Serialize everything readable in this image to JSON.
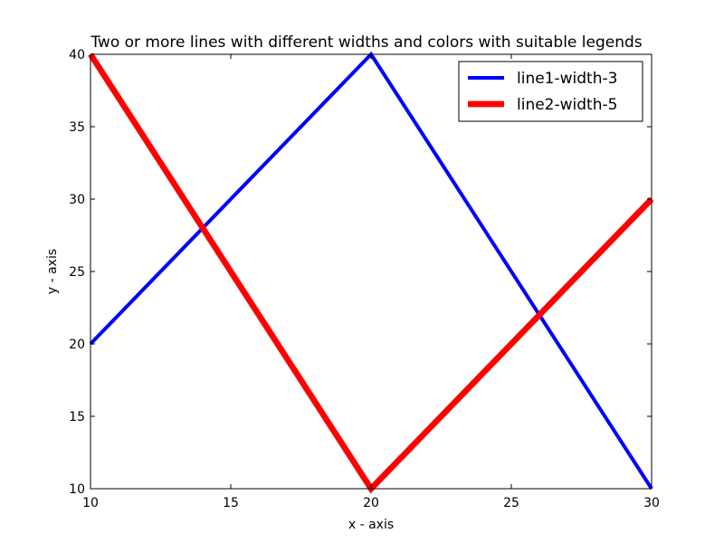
{
  "chart_data": {
    "type": "line",
    "title": "Two or more lines with different widths and colors with suitable legends",
    "xlabel": "x - axis",
    "ylabel": "y - axis",
    "xlim": [
      10,
      30
    ],
    "ylim": [
      10,
      40
    ],
    "xticks": [
      10,
      15,
      20,
      25,
      30
    ],
    "yticks": [
      10,
      15,
      20,
      25,
      30,
      35,
      40
    ],
    "grid": false,
    "legend_position": "top-right",
    "series": [
      {
        "name": "line1-width-3",
        "color": "#0000ff",
        "linewidth": 3,
        "x": [
          10,
          20,
          30
        ],
        "y": [
          20,
          40,
          10
        ]
      },
      {
        "name": "line2-width-5",
        "color": "#ff0000",
        "linewidth": 5,
        "x": [
          10,
          20,
          30
        ],
        "y": [
          40,
          10,
          30
        ]
      }
    ]
  }
}
